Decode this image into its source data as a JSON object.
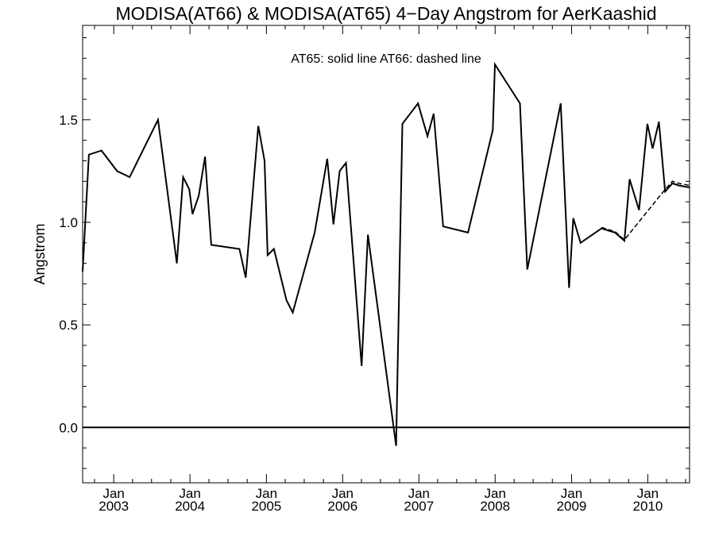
{
  "chart_data": {
    "type": "line",
    "title": "MODISA(AT66) & MODISA(AT65) 4−Day Angstrom for AerKaashid",
    "annotation": "AT65: solid line   AT66: dashed line",
    "xlabel": "",
    "ylabel": "Angstrom",
    "xlim": [
      "2002-08-05",
      "2010-07-20"
    ],
    "ylim": [
      -0.27,
      1.96
    ],
    "y_ticks": [
      0.0,
      0.5,
      1.0,
      1.5
    ],
    "y_tick_labels": [
      "0.0",
      "0.5",
      "1.0",
      "1.5"
    ],
    "x_ticks": [
      "2003-01-01",
      "2004-01-01",
      "2005-01-01",
      "2006-01-01",
      "2007-01-01",
      "2008-01-01",
      "2009-01-01",
      "2010-01-01"
    ],
    "x_tick_labels": [
      {
        "month": "Jan",
        "year": "2003"
      },
      {
        "month": "Jan",
        "year": "2004"
      },
      {
        "month": "Jan",
        "year": "2005"
      },
      {
        "month": "Jan",
        "year": "2006"
      },
      {
        "month": "Jan",
        "year": "2007"
      },
      {
        "month": "Jan",
        "year": "2008"
      },
      {
        "month": "Jan",
        "year": "2009"
      },
      {
        "month": "Jan",
        "year": "2010"
      }
    ],
    "reference_line_y": 0.0,
    "series": [
      {
        "name": "AT65",
        "style": "solid",
        "color": "#000000",
        "x": [
          "2002-08-05",
          "2002-09-04",
          "2002-11-03",
          "2003-01-17",
          "2003-03-18",
          "2003-08-01",
          "2003-10-30",
          "2003-11-29",
          "2003-12-29",
          "2004-01-13",
          "2004-02-12",
          "2004-03-13",
          "2004-04-12",
          "2004-08-25",
          "2004-09-24",
          "2004-11-23",
          "2004-12-23",
          "2005-01-07",
          "2005-02-06",
          "2005-04-07",
          "2005-05-07",
          "2005-08-20",
          "2005-10-19",
          "2005-11-18",
          "2005-12-18",
          "2006-01-17",
          "2006-04-02",
          "2006-05-02",
          "2006-09-14",
          "2006-10-14",
          "2006-12-28",
          "2007-02-11",
          "2007-03-13",
          "2007-04-27",
          "2007-08-24",
          "2007-12-21",
          "2007-12-31",
          "2008-04-29",
          "2008-06-03",
          "2008-11-10",
          "2008-12-20",
          "2009-01-09",
          "2009-02-13",
          "2009-05-24",
          "2009-07-28",
          "2009-09-11",
          "2009-10-06",
          "2009-11-20",
          "2009-12-30",
          "2010-01-24",
          "2010-02-23",
          "2010-03-25",
          "2010-04-29",
          "2010-05-29",
          "2010-07-20"
        ],
        "y": [
          0.76,
          1.33,
          1.35,
          1.25,
          1.22,
          1.5,
          0.8,
          1.22,
          1.16,
          1.04,
          1.13,
          1.32,
          0.89,
          0.87,
          0.73,
          1.47,
          1.3,
          0.84,
          0.87,
          0.62,
          0.56,
          0.95,
          1.31,
          0.99,
          1.25,
          1.29,
          0.3,
          0.94,
          -0.09,
          1.48,
          1.58,
          1.42,
          1.53,
          0.98,
          0.95,
          1.45,
          1.77,
          1.58,
          0.77,
          1.58,
          0.68,
          1.02,
          0.9,
          0.97,
          0.95,
          0.91,
          1.21,
          1.06,
          1.48,
          1.36,
          1.49,
          1.15,
          1.19,
          1.18,
          1.17
        ]
      },
      {
        "name": "AT66",
        "style": "dashed",
        "color": "#000000",
        "x": [
          "2009-05-24",
          "2009-07-28",
          "2009-09-11",
          "2010-03-25",
          "2010-04-29",
          "2010-05-29",
          "2010-07-20"
        ],
        "y": [
          0.975,
          0.955,
          0.915,
          1.16,
          1.2,
          1.19,
          1.18
        ]
      }
    ],
    "grid": false,
    "legend": "none"
  }
}
